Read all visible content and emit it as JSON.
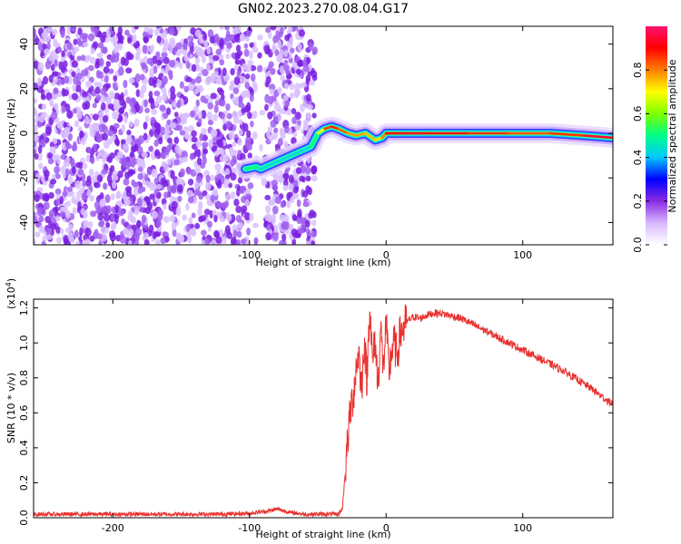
{
  "title": "GN02.2023.270.08.04.G17",
  "chart_data": [
    {
      "type": "heatmap",
      "xlabel": "Height of straight line (km)",
      "ylabel": "Frequency (Hz)",
      "xlim": [
        -258,
        166
      ],
      "ylim": [
        -50,
        48
      ],
      "xticks": [
        -200,
        -100,
        0,
        100
      ],
      "yticks": [
        -40,
        -20,
        0,
        20,
        40
      ],
      "xtick_labels": [
        "-200",
        "-100",
        "0",
        "100"
      ],
      "ytick_labels": [
        "-40",
        "-20",
        "0",
        "20",
        "40"
      ],
      "colorbar": {
        "label": "Normalized spectral amplitude",
        "range": [
          0.0,
          1.0
        ],
        "ticks": [
          0.0,
          0.2,
          0.4,
          0.6,
          0.8
        ],
        "tick_labels": [
          "0.0",
          "0.2",
          "0.4",
          "0.6",
          "0.8"
        ],
        "colors": [
          "#ffffff",
          "#d8b8ff",
          "#8a2be2",
          "#0000ff",
          "#00c8ff",
          "#00ff88",
          "#7fff00",
          "#ffff00",
          "#ff8000",
          "#ff0000",
          "#ff1070"
        ]
      },
      "noise_region": {
        "x_from": -258,
        "x_to": -52,
        "gap": [
          -98,
          -88
        ]
      },
      "signal_track": {
        "x": [
          -103,
          -95,
          -92,
          -55,
          -50,
          -45,
          -40,
          -35,
          -28,
          -22,
          -15,
          -8,
          -3,
          0,
          10,
          30,
          60,
          90,
          120,
          145,
          166
        ],
        "freq": [
          -16,
          -15,
          -16,
          -6,
          0,
          2,
          3,
          2,
          0,
          -1,
          0,
          -3,
          -2,
          0,
          0,
          0,
          0,
          0,
          0,
          -1,
          -2
        ],
        "level": [
          0.5,
          0.5,
          0.45,
          0.4,
          0.6,
          0.8,
          0.9,
          0.85,
          0.8,
          0.75,
          0.8,
          0.7,
          0.75,
          0.85,
          0.95,
          0.9,
          0.88,
          0.85,
          0.82,
          0.9,
          1.0
        ]
      }
    },
    {
      "type": "line",
      "xlabel": "Height of straight line (km)",
      "ylabel": "SNR (10 * v/v)",
      "y_multiplier_label": "(x10",
      "y_multiplier_exp": "4",
      "y_multiplier_close": ")",
      "xlim": [
        -258,
        166
      ],
      "ylim": [
        0,
        1.25
      ],
      "xticks": [
        -200,
        -100,
        0,
        100
      ],
      "yticks": [
        0.0,
        0.2,
        0.4,
        0.6,
        0.8,
        1.0,
        1.2
      ],
      "xtick_labels": [
        "-200",
        "-100",
        "0",
        "100"
      ],
      "ytick_labels": [
        "0.0",
        "0.2",
        "0.4",
        "0.6",
        "0.8",
        "1.0",
        "1.2"
      ],
      "color": "#e8312f",
      "series": [
        {
          "x": [
            -258,
            -240,
            -220,
            -200,
            -180,
            -160,
            -140,
            -120,
            -100,
            -85,
            -80,
            -75,
            -70,
            -60,
            -50,
            -40,
            -35,
            -32,
            -30,
            -28,
            -26,
            -24,
            -22,
            -20,
            -18,
            -16,
            -14,
            -12,
            -10,
            -8,
            -6,
            -4,
            -2,
            0,
            2,
            4,
            6,
            8,
            10,
            12,
            15,
            20,
            25,
            30,
            35,
            40,
            45,
            50,
            55,
            60,
            70,
            80,
            90,
            100,
            110,
            120,
            130,
            140,
            150,
            160,
            166
          ],
          "y": [
            0.02,
            0.02,
            0.02,
            0.02,
            0.02,
            0.02,
            0.02,
            0.02,
            0.025,
            0.04,
            0.05,
            0.04,
            0.03,
            0.02,
            0.02,
            0.02,
            0.02,
            0.05,
            0.25,
            0.45,
            0.62,
            0.7,
            0.85,
            0.95,
            0.72,
            1.02,
            0.78,
            1.24,
            0.88,
            1.02,
            0.75,
            1.08,
            0.85,
            1.12,
            0.82,
            0.96,
            1.0,
            0.92,
            1.04,
            1.08,
            1.12,
            1.15,
            1.14,
            1.16,
            1.17,
            1.17,
            1.16,
            1.15,
            1.14,
            1.12,
            1.08,
            1.04,
            1.0,
            0.96,
            0.92,
            0.88,
            0.84,
            0.79,
            0.74,
            0.68,
            0.65
          ]
        }
      ]
    }
  ]
}
